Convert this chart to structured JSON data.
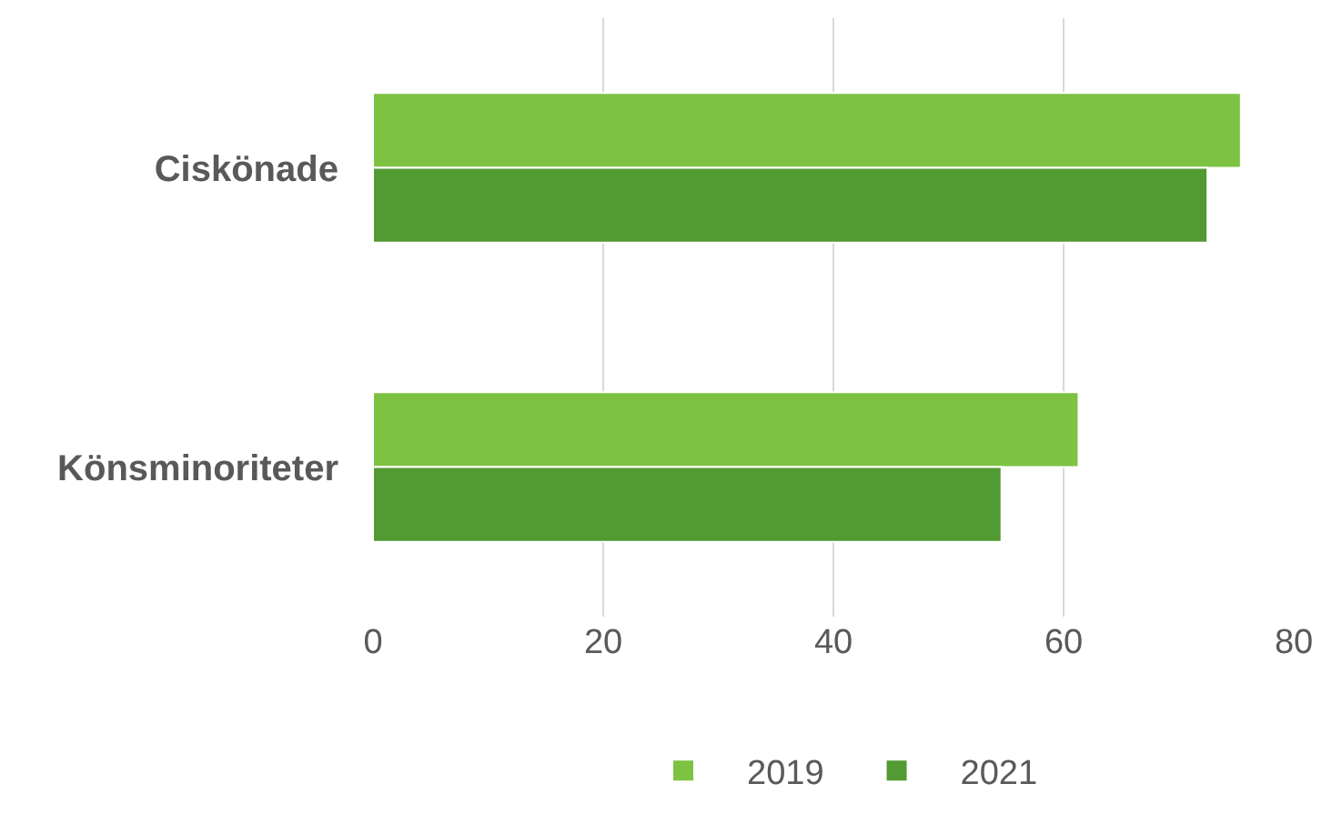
{
  "chart_data": {
    "type": "bar",
    "orientation": "horizontal",
    "categories": [
      "Ciskönade",
      "Könsminoriteter"
    ],
    "series": [
      {
        "name": "2019",
        "color": "#7dc243",
        "values": [
          75.4,
          61.3
        ]
      },
      {
        "name": "2021",
        "color": "#529a32",
        "values": [
          72.5,
          54.6
        ]
      }
    ],
    "xlim": [
      0,
      80
    ],
    "xticks": [
      0,
      20,
      40,
      60,
      80
    ],
    "grid": "x",
    "legend": "bottom"
  }
}
